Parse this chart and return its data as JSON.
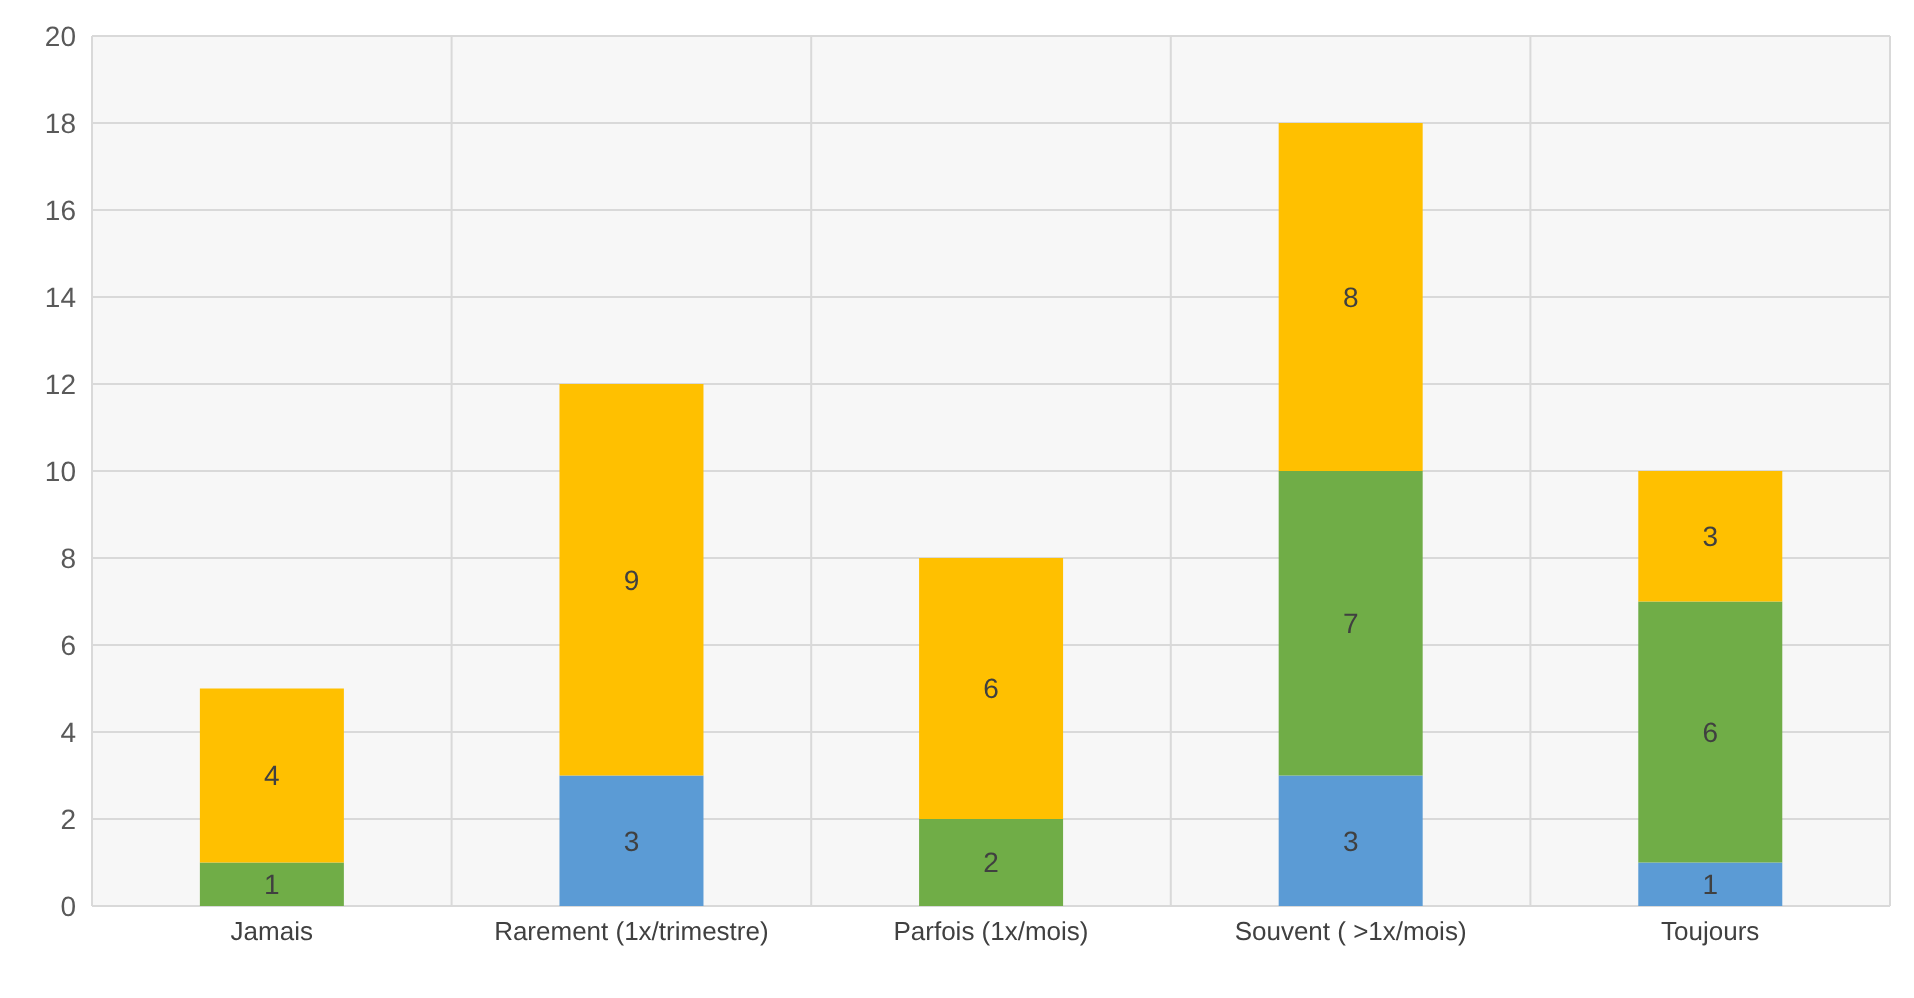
{
  "chart_data": {
    "type": "bar",
    "stacked": true,
    "data_labels": true,
    "grid": true,
    "categories": [
      "Jamais",
      "Rarement (1x/trimestre)",
      "Parfois  (1x/mois)",
      "Souvent ( >1x/mois)",
      "Toujours"
    ],
    "series": [
      {
        "color": "#5b9bd5",
        "values": [
          null,
          3,
          null,
          3,
          1
        ]
      },
      {
        "color": "#70ad47",
        "values": [
          1,
          null,
          2,
          7,
          6
        ]
      },
      {
        "color": "#ffc000",
        "values": [
          4,
          9,
          6,
          8,
          3
        ]
      }
    ],
    "ylim": [
      0,
      20
    ],
    "yticks": [
      0,
      2,
      4,
      6,
      8,
      10,
      12,
      14,
      16,
      18,
      20
    ]
  }
}
